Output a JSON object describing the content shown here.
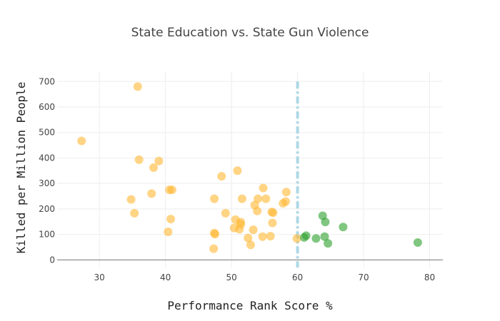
{
  "chart_data": {
    "type": "scatter",
    "title": "State Education vs. State Gun Violence",
    "xlabel": "Performance Rank Score %",
    "ylabel": "Killed per Million People",
    "xlim": [
      23.6,
      82
    ],
    "ylim": [
      -30,
      740
    ],
    "x_ticks": [
      30,
      40,
      50,
      60,
      70,
      80
    ],
    "y_ticks": [
      0,
      100,
      200,
      300,
      400,
      500,
      600,
      700
    ],
    "grid": true,
    "threshold_line": {
      "x": 60,
      "style": "dashdot",
      "color": "#add8e6"
    },
    "series": [
      {
        "color": "#ffb732",
        "points": [
          [
            27.3,
            467
          ],
          [
            35.8,
            680
          ],
          [
            34.8,
            237
          ],
          [
            35.3,
            183
          ],
          [
            36.0,
            393
          ],
          [
            37.9,
            260
          ],
          [
            38.2,
            362
          ],
          [
            39.0,
            388
          ],
          [
            40.4,
            110
          ],
          [
            40.8,
            160
          ],
          [
            40.6,
            275
          ],
          [
            41.0,
            275
          ],
          [
            47.3,
            44
          ],
          [
            47.4,
            105
          ],
          [
            47.5,
            101
          ],
          [
            47.4,
            240
          ],
          [
            48.5,
            328
          ],
          [
            49.1,
            183
          ],
          [
            50.4,
            125
          ],
          [
            50.6,
            158
          ],
          [
            50.9,
            350
          ],
          [
            51.2,
            120
          ],
          [
            51.4,
            148
          ],
          [
            51.4,
            139
          ],
          [
            51.6,
            240
          ],
          [
            52.5,
            86
          ],
          [
            52.9,
            59
          ],
          [
            53.3,
            118
          ],
          [
            53.5,
            215
          ],
          [
            53.9,
            192
          ],
          [
            54.0,
            240
          ],
          [
            54.7,
            91
          ],
          [
            54.8,
            282
          ],
          [
            55.2,
            240
          ],
          [
            55.9,
            93
          ],
          [
            56.2,
            145
          ],
          [
            56.1,
            188
          ],
          [
            56.3,
            185
          ],
          [
            57.8,
            222
          ],
          [
            58.2,
            229
          ],
          [
            58.3,
            266
          ],
          [
            59.9,
            84
          ]
        ]
      },
      {
        "color": "#2ca02c",
        "points": [
          [
            61.0,
            88
          ],
          [
            61.3,
            95
          ],
          [
            62.8,
            84
          ],
          [
            63.8,
            173
          ],
          [
            64.2,
            149
          ],
          [
            64.1,
            91
          ],
          [
            64.6,
            65
          ],
          [
            66.9,
            129
          ],
          [
            78.2,
            68
          ]
        ]
      }
    ]
  }
}
